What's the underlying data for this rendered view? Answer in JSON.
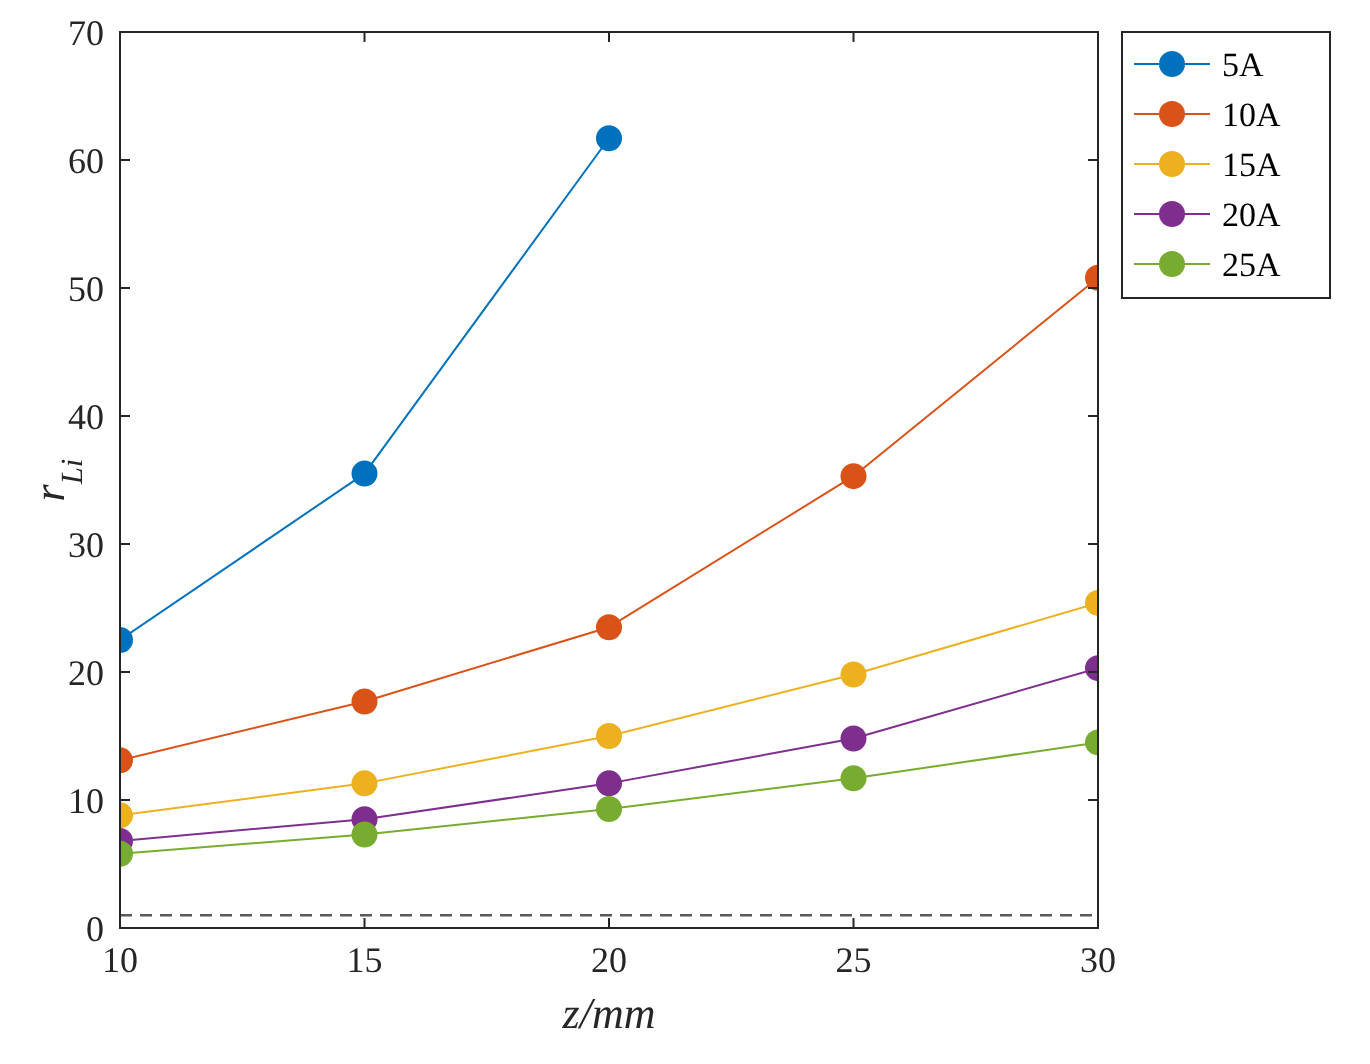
{
  "chart_data": {
    "type": "line",
    "xlabel": "z/mm",
    "ylabel": "r$_{Li}$",
    "x": [
      10,
      15,
      20,
      25,
      30
    ],
    "xlim": [
      10,
      30
    ],
    "xticks": [
      10,
      15,
      20,
      25,
      30
    ],
    "ylim": [
      0,
      70
    ],
    "yticks": [
      0,
      10,
      20,
      30,
      40,
      50,
      60,
      70
    ],
    "marker": "circle",
    "grid": false,
    "legend": "top right",
    "series": [
      {
        "name": "5A",
        "color": "#0072bd",
        "values": [
          22.5,
          35.5,
          61.7,
          null,
          null
        ]
      },
      {
        "name": "10A",
        "color": "#d95319",
        "values": [
          13.1,
          17.7,
          23.5,
          35.3,
          50.8
        ]
      },
      {
        "name": "15A",
        "color": "#edb120",
        "values": [
          8.8,
          11.3,
          15.0,
          19.8,
          25.4
        ]
      },
      {
        "name": "20A",
        "color": "#7e2f8e",
        "values": [
          6.8,
          8.5,
          11.3,
          14.8,
          20.3
        ]
      },
      {
        "name": "25A",
        "color": "#77ac30",
        "values": [
          5.8,
          7.3,
          9.3,
          11.7,
          14.5
        ]
      }
    ],
    "ref_lines": [
      {
        "axis": "y",
        "value": 1,
        "color": "#595959",
        "line_style": "dashed"
      }
    ]
  }
}
